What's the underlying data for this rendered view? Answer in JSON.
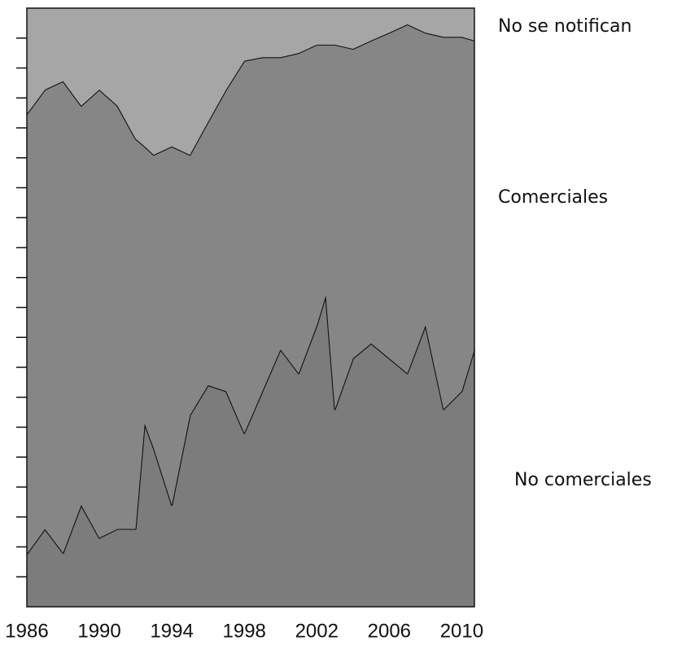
{
  "chart_data": {
    "type": "stacked_area",
    "x": [
      1986,
      1987,
      1988,
      1989,
      1990,
      1991,
      1992,
      1992.5,
      1993,
      1994,
      1995,
      1996,
      1997,
      1998,
      1999,
      2000,
      2001,
      2002,
      2002.5,
      2003,
      2004,
      2005,
      2006,
      2007,
      2008,
      2009,
      2010,
      2010.7
    ],
    "series": [
      {
        "name": "No comerciales",
        "color": "#7c7c7c",
        "values": [
          8.8,
          13,
          9,
          17,
          11.5,
          13,
          13,
          30.6,
          26.5,
          17,
          32,
          37,
          36,
          29,
          36,
          43,
          39,
          47,
          52,
          33,
          41.5,
          44,
          41.5,
          39,
          47,
          33,
          36,
          43
        ]
      },
      {
        "name": "Comerciales",
        "color": "#868686",
        "values": [
          73.5,
          73.4,
          78.8,
          66.7,
          74.9,
          70.7,
          65.2,
          46.3,
          49,
          59.9,
          43.5,
          44,
          50.4,
          62.2,
          55.8,
          48.8,
          53.5,
          46.9,
          41.9,
          60.9,
          51.7,
          50.6,
          54.4,
          58.3,
          48.9,
          62.2,
          59.2,
          51.6
        ]
      },
      {
        "name": "No se notifican",
        "color": "#a6a6a6",
        "values": [
          17.7,
          13.6,
          12.2,
          16.3,
          13.6,
          16.3,
          21.8,
          23.1,
          24.5,
          23.1,
          24.5,
          19,
          13.6,
          8.8,
          8.2,
          8.2,
          7.5,
          6.1,
          6.1,
          6.1,
          6.8,
          5.4,
          4.1,
          2.7,
          4.1,
          4.8,
          4.8,
          5.4
        ]
      }
    ],
    "xlim": [
      1986,
      2010.7
    ],
    "xticks": [
      1986,
      1990,
      1994,
      1998,
      2002,
      2006,
      2010
    ],
    "ylim": [
      0,
      100
    ],
    "yticks": [
      5,
      10,
      15,
      20,
      25,
      30,
      35,
      40,
      45,
      50,
      55,
      60,
      65,
      70,
      75,
      80,
      85,
      90,
      95
    ],
    "ytick_labels": false,
    "line_color": "#111111"
  }
}
